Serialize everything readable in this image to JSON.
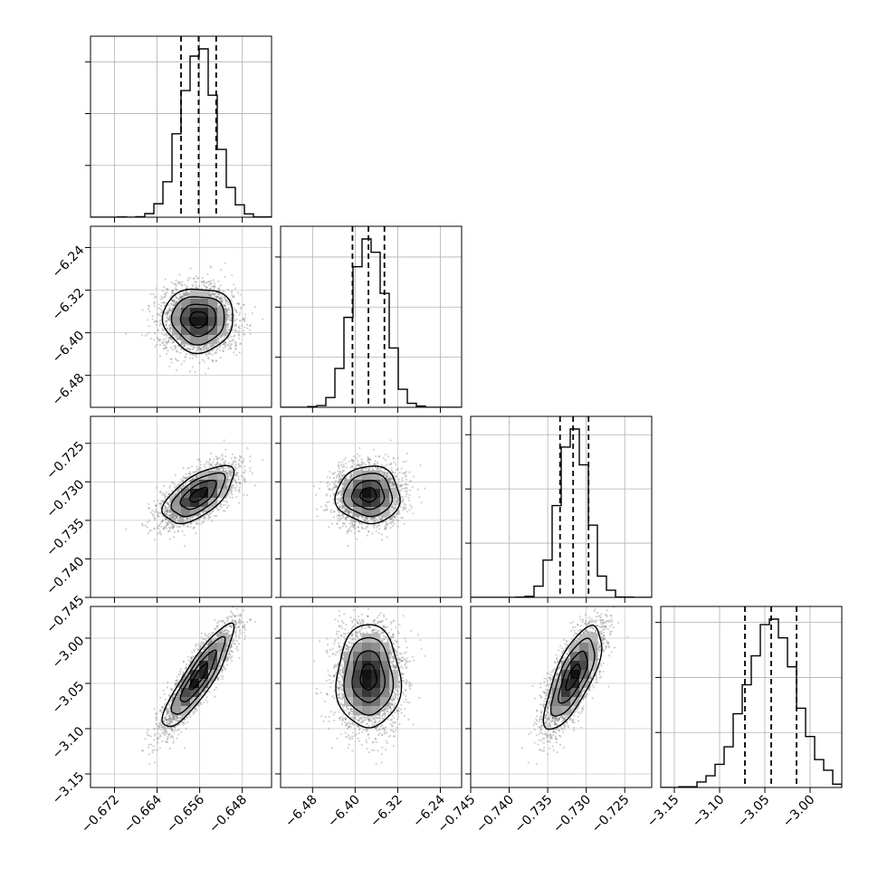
{
  "chart_data": {
    "type": "corner",
    "title": "",
    "parameters": [
      {
        "label": "",
        "range": [
          -0.6765,
          -0.6425
        ],
        "median": -0.6562,
        "q16": -0.6595,
        "q84": -0.6529,
        "ticks": [
          -0.672,
          -0.664,
          -0.656,
          -0.648
        ],
        "tick_labels": [
          "−0.672",
          "−0.664",
          "−0.656",
          "−0.648"
        ]
      },
      {
        "label": "",
        "range": [
          -6.54,
          -6.2
        ],
        "median": -6.375,
        "q16": -6.405,
        "q84": -6.345,
        "ticks": [
          -6.48,
          -6.4,
          -6.32,
          -6.24
        ],
        "tick_labels": [
          "−6.48",
          "−6.40",
          "−6.32",
          "−6.24"
        ]
      },
      {
        "label": "",
        "range": [
          -0.745,
          -0.7215
        ],
        "median": -0.7317,
        "q16": -0.7334,
        "q84": -0.7297,
        "ticks": [
          -0.745,
          -0.74,
          -0.735,
          -0.73,
          -0.725
        ],
        "tick_labels": [
          "−0.745",
          "−0.740",
          "−0.735",
          "−0.730",
          "−0.725"
        ]
      },
      {
        "label": "",
        "range": [
          -3.165,
          -2.965
        ],
        "median": -3.043,
        "q16": -3.072,
        "q84": -3.015,
        "ticks": [
          -3.15,
          -3.1,
          -3.05,
          -3.0
        ],
        "tick_labels": [
          "−3.15",
          "−3.10",
          "−3.05",
          "−3.00"
        ]
      }
    ],
    "correlations": [
      [
        1,
        0,
        0.62,
        0.88
      ],
      [
        0,
        1,
        0,
        0
      ],
      [
        0.62,
        0,
        1,
        0.72
      ],
      [
        0.88,
        0,
        0.72,
        1
      ]
    ],
    "quantile_lines": "dashed",
    "grid": true,
    "legend": "none"
  }
}
